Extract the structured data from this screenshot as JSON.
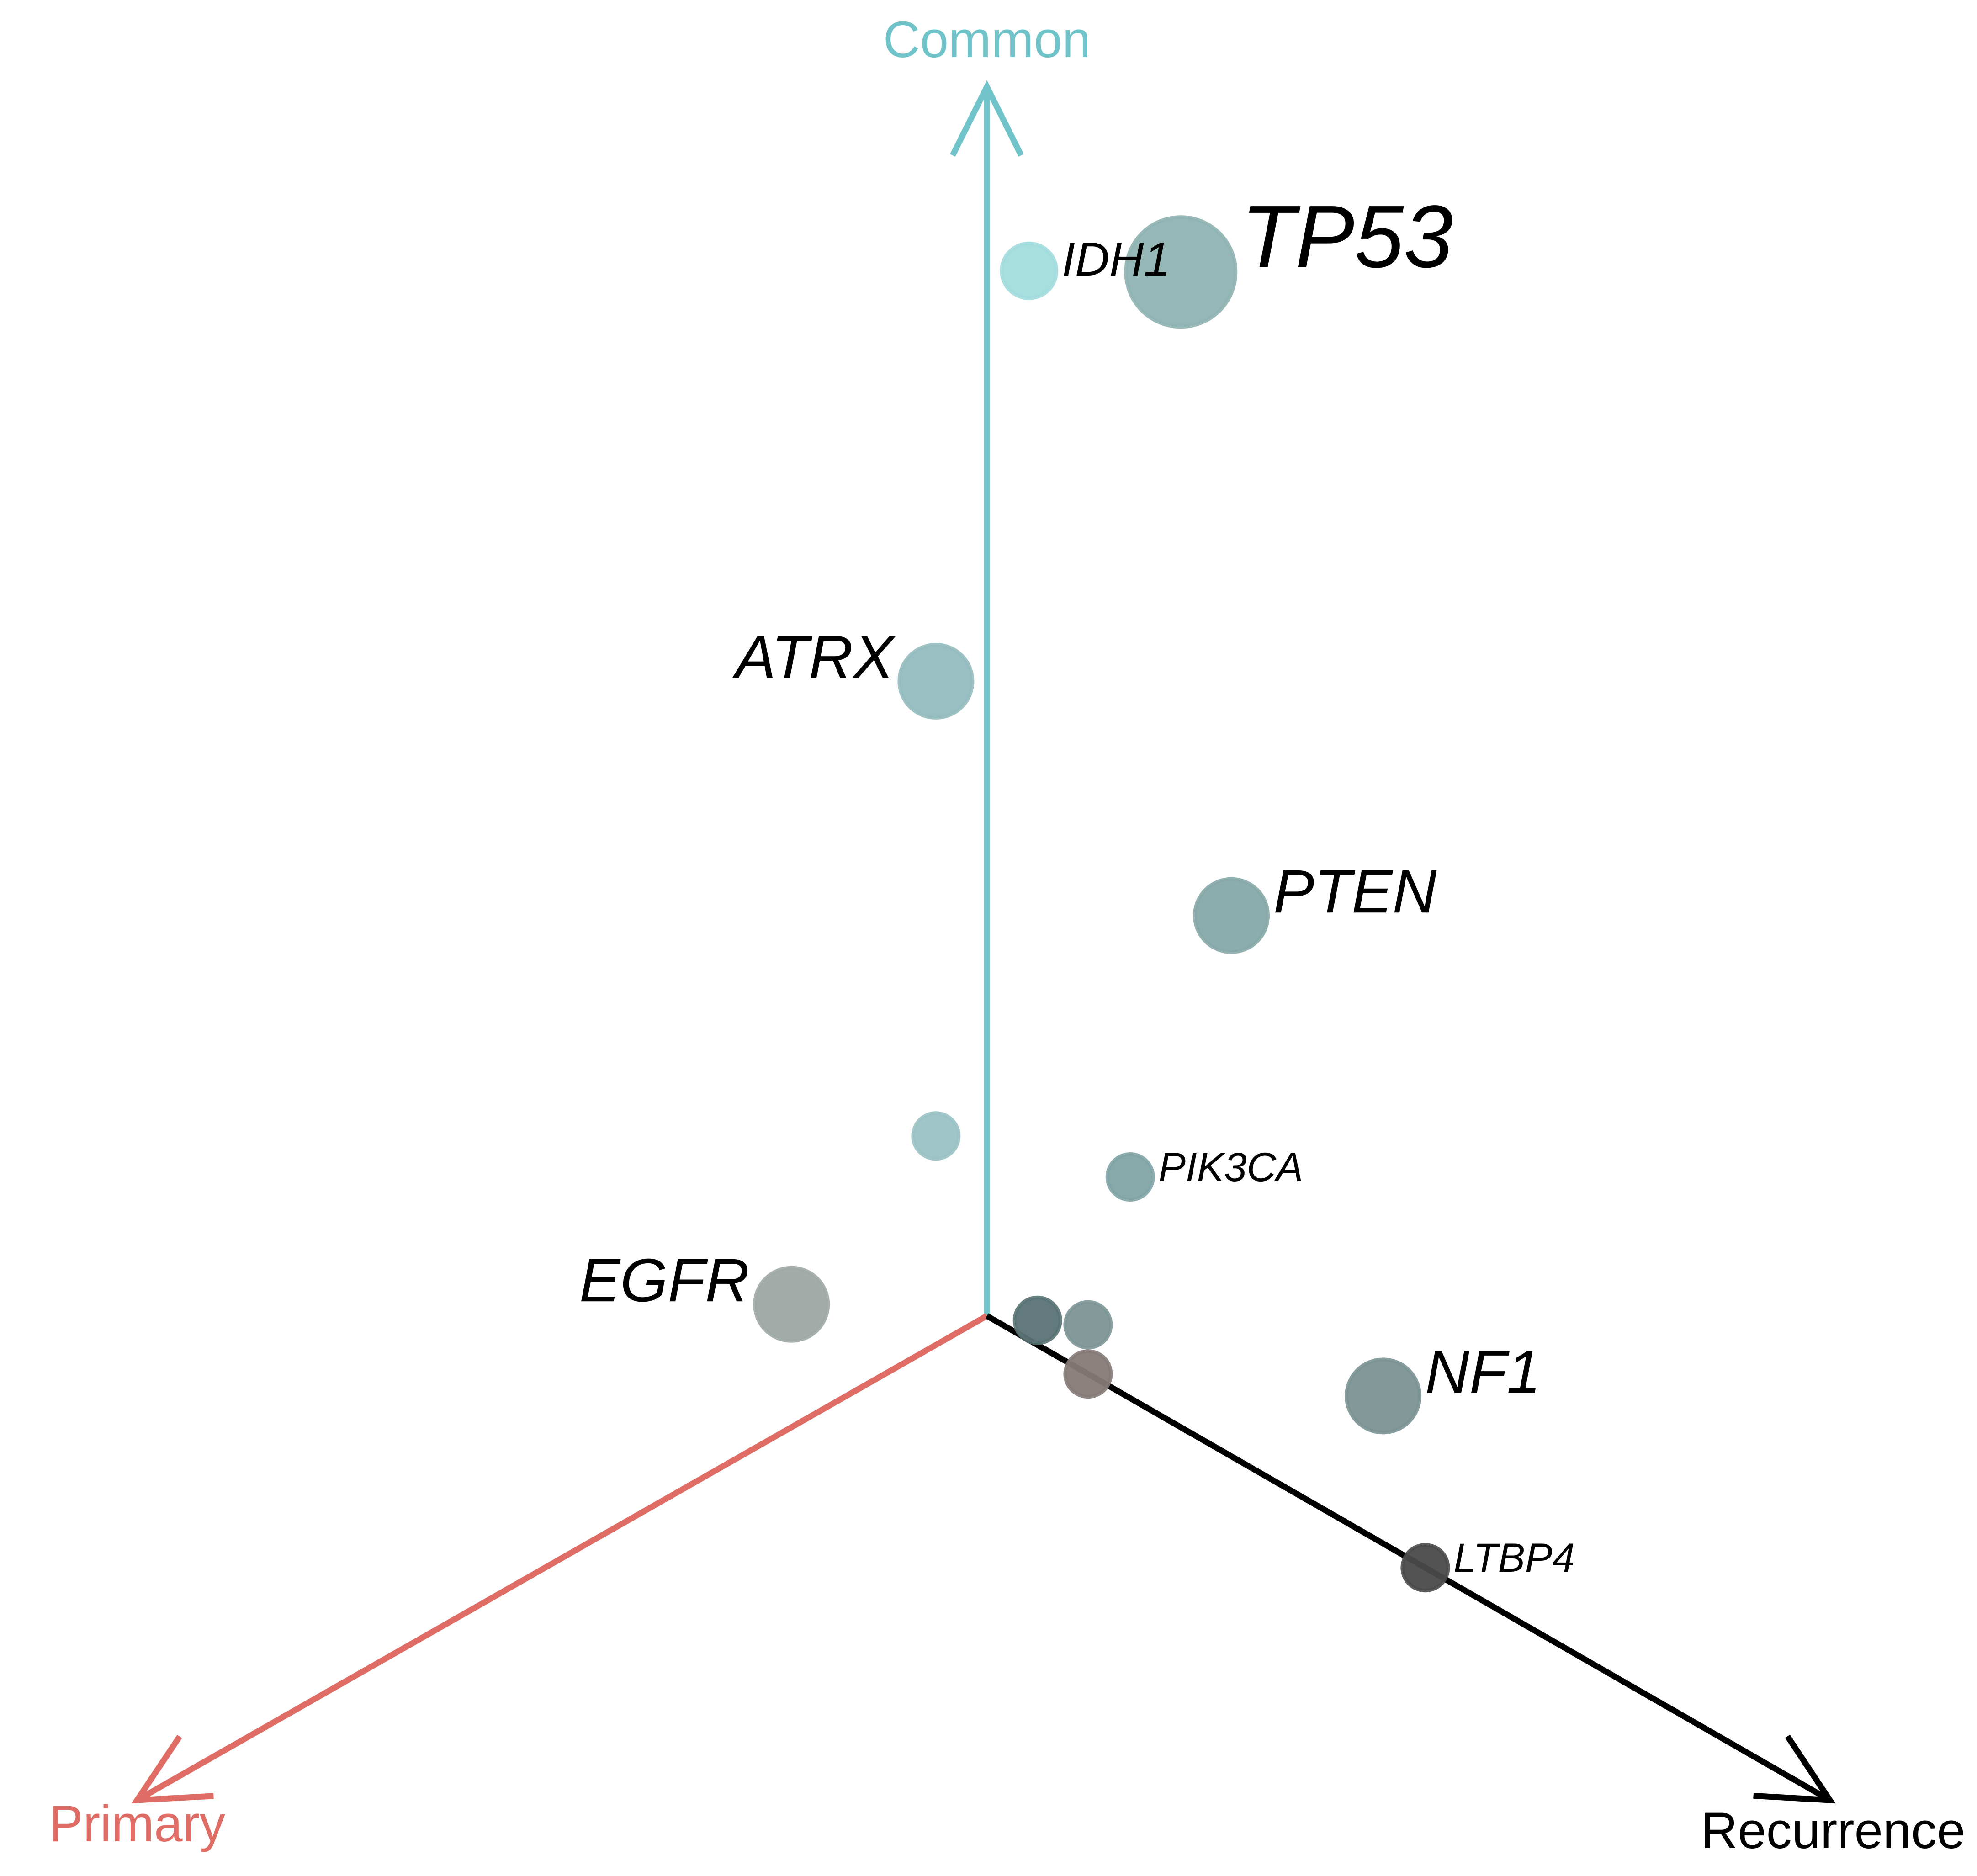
{
  "chart_data": {
    "type": "scatter",
    "subtype": "ternary-style radial scatter",
    "axes": [
      {
        "name": "Common",
        "color": "#6fc3c9"
      },
      {
        "name": "Primary",
        "color": "#e06c66"
      },
      {
        "name": "Recurrence",
        "color": "#000000"
      }
    ],
    "points": [
      {
        "gene": "TP53",
        "common": 0.94,
        "primary": 0.0,
        "recurrence": 0.23,
        "size": 5,
        "color": "#8fb3b2"
      },
      {
        "gene": "IDH1",
        "common": 0.87,
        "primary": 0.0,
        "recurrence": 0.05,
        "size": 2,
        "color": "#a2dcde"
      },
      {
        "gene": "ATRX",
        "common": 0.54,
        "primary": 0.06,
        "recurrence": 0.0,
        "size": 3,
        "color": "#95bcbf"
      },
      {
        "gene": "PTEN",
        "common": 0.44,
        "primary": 0.0,
        "recurrence": 0.29,
        "size": 3,
        "color": "#87a9a8"
      },
      {
        "gene": "PIK3CA",
        "common": 0.18,
        "primary": 0.0,
        "recurrence": 0.17,
        "size": 1.5,
        "color": "#81a4a5"
      },
      {
        "gene": "",
        "common": 0.17,
        "primary": 0.06,
        "recurrence": 0.0,
        "size": 1.5,
        "color": "#9ac2c4"
      },
      {
        "gene": "EGFR",
        "common": 0.1,
        "primary": 0.23,
        "recurrence": 0.0,
        "size": 3,
        "color": "#9fa8a5"
      },
      {
        "gene": "NF1",
        "common": 0.12,
        "primary": 0.0,
        "recurrence": 0.47,
        "size": 3,
        "color": "#7b9394"
      },
      {
        "gene": "",
        "common": 0.04,
        "primary": 0.0,
        "recurrence": 0.12,
        "size": 1.5,
        "color": "#7d9697"
      },
      {
        "gene": "",
        "common": 0.02,
        "primary": 0.0,
        "recurrence": 0.06,
        "size": 1.5,
        "color": "#5a7374"
      },
      {
        "gene": "",
        "common": 0.0,
        "primary": 0.0,
        "recurrence": 0.12,
        "size": 1.5,
        "color": "#857a78"
      },
      {
        "gene": "LTBP4",
        "common": 0.0,
        "primary": 0.0,
        "recurrence": 0.52,
        "size": 1.5,
        "color": "#4a4a4a"
      }
    ],
    "title": "",
    "grid": false,
    "legend": "none"
  }
}
